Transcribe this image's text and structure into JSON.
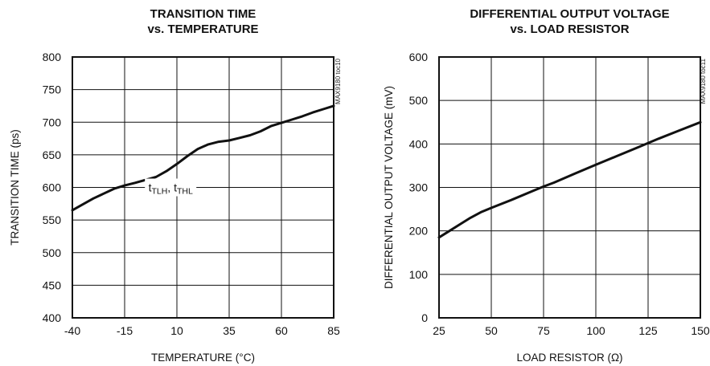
{
  "chart_data": [
    {
      "type": "line",
      "title_lines": [
        "TRANSITION TIME",
        "vs. TEMPERATURE"
      ],
      "xlabel": "TEMPERATURE (°C)",
      "ylabel": "TRANSITION TIME (ps)",
      "xlim": [
        -40,
        85
      ],
      "ylim": [
        400,
        800
      ],
      "xticks": [
        -40,
        -15,
        10,
        35,
        60,
        85
      ],
      "yticks": [
        400,
        450,
        500,
        550,
        600,
        650,
        700,
        750,
        800
      ],
      "grid": true,
      "tag": "MAX9180 toc10",
      "annotation": {
        "base": "t",
        "sub1": "TLH",
        "sep": ", ",
        "sub2": "THL"
      },
      "series": [
        {
          "x": [
            -40,
            -30,
            -20,
            -15,
            -10,
            0,
            5,
            10,
            15,
            20,
            25,
            30,
            35,
            40,
            45,
            50,
            55,
            60,
            65,
            70,
            75,
            80,
            85
          ],
          "y": [
            565,
            583,
            598,
            603,
            607,
            616,
            625,
            636,
            648,
            659,
            666,
            670,
            672,
            676,
            680,
            686,
            694,
            699,
            704,
            709,
            715,
            720,
            725
          ]
        }
      ]
    },
    {
      "type": "line",
      "title_lines": [
        "DIFFERENTIAL OUTPUT VOLTAGE",
        "vs. LOAD RESISTOR"
      ],
      "xlabel": "LOAD RESISTOR (Ω)",
      "ylabel": "DIFFERENTIAL OUTPUT VOLTAGE (mV)",
      "xlim": [
        25,
        150
      ],
      "ylim": [
        0,
        600
      ],
      "xticks": [
        25,
        50,
        75,
        100,
        125,
        150
      ],
      "yticks": [
        0,
        100,
        200,
        300,
        400,
        500,
        600
      ],
      "grid": true,
      "tag": "MAX9180 toc11",
      "series": [
        {
          "x": [
            25,
            30,
            35,
            40,
            45,
            50,
            60,
            70,
            75,
            80,
            90,
            100,
            110,
            120,
            125,
            130,
            140,
            150
          ],
          "y": [
            185,
            200,
            215,
            230,
            243,
            253,
            272,
            292,
            302,
            311,
            332,
            352,
            372,
            392,
            402,
            412,
            431,
            450
          ]
        }
      ]
    }
  ]
}
